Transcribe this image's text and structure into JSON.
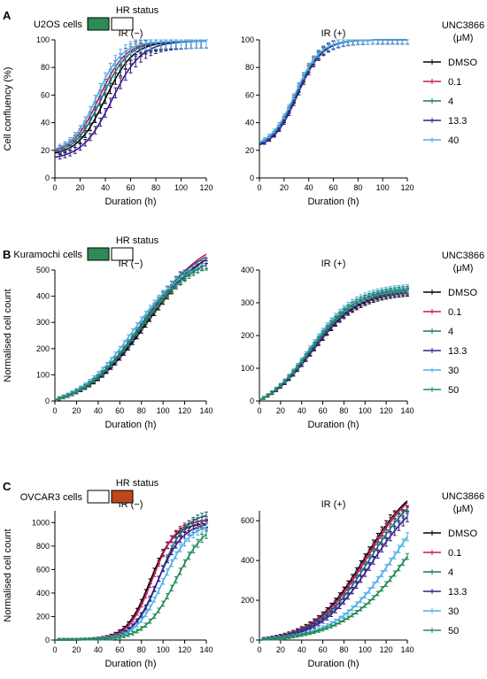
{
  "colors": {
    "DMSO": "#000000",
    "c0_1": "#c2185b",
    "c4": "#1b6f7a",
    "c13_3": "#3a1a8a",
    "c40": "#4fb0e8",
    "c30": "#4fb0e8",
    "c50": "#238b57",
    "hr_green": "#2e8b57",
    "hr_orange": "#c0461c"
  },
  "panels": [
    {
      "letter": "A",
      "cell_label": "U2OS cells",
      "hr_title": "HR status",
      "hr_boxes": [
        "hr_green",
        "none"
      ],
      "legend_title": [
        "UNC3866",
        "(μM)"
      ],
      "legend": [
        "DMSO",
        "0.1",
        "4",
        "13.3",
        "40"
      ]
    },
    {
      "letter": "B",
      "cell_label": "Kuramochi cells",
      "hr_title": "HR status",
      "hr_boxes": [
        "hr_green",
        "none"
      ],
      "legend_title": [
        "UNC3866",
        "(μM)"
      ],
      "legend": [
        "DMSO",
        "0.1",
        "4",
        "13.3",
        "30",
        "50"
      ]
    },
    {
      "letter": "C",
      "cell_label": "OVCAR3 cells",
      "hr_title": "HR status",
      "hr_boxes": [
        "none",
        "hr_orange"
      ],
      "legend_title": [
        "UNC3866",
        "(μM)"
      ],
      "legend": [
        "DMSO",
        "0.1",
        "4",
        "13.3",
        "30",
        "50"
      ]
    }
  ],
  "chart_data": [
    {
      "id": "A-left",
      "type": "line",
      "title": "IR (−)",
      "xlabel": "Duration (h)",
      "ylabel": "Cell confluency (%)",
      "xlim": [
        0,
        120
      ],
      "ylim": [
        0,
        100
      ],
      "xticks": [
        0,
        20,
        40,
        60,
        80,
        100,
        120
      ],
      "yticks": [
        0,
        20,
        40,
        60,
        80,
        100
      ],
      "series": [
        {
          "name": "DMSO",
          "color_key": "DMSO",
          "t0": 18,
          "K": 99,
          "mid": 40,
          "k": 0.09,
          "xmax": 120,
          "err": 5
        },
        {
          "name": "0.1",
          "color_key": "c0_1",
          "t0": 20,
          "K": 99,
          "mid": 35,
          "k": 0.095,
          "xmax": 120,
          "err": 5
        },
        {
          "name": "4",
          "color_key": "c4",
          "t0": 19,
          "K": 99,
          "mid": 37,
          "k": 0.093,
          "xmax": 120,
          "err": 5
        },
        {
          "name": "13.3",
          "color_key": "c13_3",
          "t0": 15,
          "K": 99,
          "mid": 45,
          "k": 0.085,
          "xmax": 120,
          "err": 5
        },
        {
          "name": "40",
          "color_key": "c40",
          "t0": 21,
          "K": 99,
          "mid": 33,
          "k": 0.1,
          "xmax": 120,
          "err": 5
        }
      ]
    },
    {
      "id": "A-right",
      "type": "line",
      "title": "IR (+)",
      "xlabel": "Duration (h)",
      "ylabel": "",
      "xlim": [
        0,
        120
      ],
      "ylim": [
        0,
        100
      ],
      "xticks": [
        0,
        20,
        40,
        60,
        80,
        100,
        120
      ],
      "yticks": [
        0,
        20,
        40,
        60,
        80,
        100
      ],
      "series": [
        {
          "name": "DMSO",
          "color_key": "DMSO",
          "t0": 24,
          "K": 100,
          "mid": 30,
          "k": 0.1,
          "xmax": 120,
          "err": 3
        },
        {
          "name": "0.1",
          "color_key": "c0_1",
          "t0": 24,
          "K": 100,
          "mid": 29,
          "k": 0.1,
          "xmax": 120,
          "err": 3
        },
        {
          "name": "4",
          "color_key": "c4",
          "t0": 25,
          "K": 100,
          "mid": 30,
          "k": 0.1,
          "xmax": 120,
          "err": 3
        },
        {
          "name": "13.3",
          "color_key": "c13_3",
          "t0": 24,
          "K": 100,
          "mid": 31,
          "k": 0.1,
          "xmax": 120,
          "err": 3
        },
        {
          "name": "40",
          "color_key": "c40",
          "t0": 26,
          "K": 100,
          "mid": 29,
          "k": 0.1,
          "xmax": 120,
          "err": 3
        }
      ]
    },
    {
      "id": "B-left",
      "type": "line",
      "title": "IR (−)",
      "xlabel": "Duration (h)",
      "ylabel": "Normalised cell count",
      "xlim": [
        0,
        140
      ],
      "ylim": [
        0,
        500
      ],
      "xticks": [
        0,
        20,
        40,
        60,
        80,
        100,
        120,
        140
      ],
      "yticks": [
        0,
        100,
        200,
        300,
        400,
        500
      ],
      "series": [
        {
          "name": "DMSO",
          "color_key": "DMSO",
          "t0": 5,
          "K": 540,
          "mid": 85,
          "k": 0.035,
          "xmax": 140,
          "err": 15
        },
        {
          "name": "0.1",
          "color_key": "c0_1",
          "t0": 5,
          "K": 560,
          "mid": 83,
          "k": 0.035,
          "xmax": 140,
          "err": 15
        },
        {
          "name": "4",
          "color_key": "c4",
          "t0": 5,
          "K": 550,
          "mid": 80,
          "k": 0.036,
          "xmax": 140,
          "err": 15
        },
        {
          "name": "13.3",
          "color_key": "c13_3",
          "t0": 5,
          "K": 540,
          "mid": 82,
          "k": 0.036,
          "xmax": 140,
          "err": 15
        },
        {
          "name": "30",
          "color_key": "c30",
          "t0": 5,
          "K": 520,
          "mid": 72,
          "k": 0.038,
          "xmax": 140,
          "err": 15
        },
        {
          "name": "50",
          "color_key": "c50",
          "t0": 5,
          "K": 520,
          "mid": 78,
          "k": 0.037,
          "xmax": 140,
          "err": 15
        }
      ]
    },
    {
      "id": "B-right",
      "type": "line",
      "title": "IR (+)",
      "xlabel": "Duration (h)",
      "ylabel": "",
      "xlim": [
        0,
        140
      ],
      "ylim": [
        0,
        400
      ],
      "xticks": [
        0,
        20,
        40,
        60,
        80,
        100,
        120,
        140
      ],
      "yticks": [
        0,
        100,
        200,
        300,
        400
      ],
      "series": [
        {
          "name": "DMSO",
          "color_key": "DMSO",
          "t0": 3,
          "K": 330,
          "mid": 50,
          "k": 0.045,
          "xmax": 140,
          "err": 10
        },
        {
          "name": "0.1",
          "color_key": "c0_1",
          "t0": 3,
          "K": 335,
          "mid": 50,
          "k": 0.045,
          "xmax": 140,
          "err": 10
        },
        {
          "name": "4",
          "color_key": "c4",
          "t0": 3,
          "K": 340,
          "mid": 49,
          "k": 0.046,
          "xmax": 140,
          "err": 10
        },
        {
          "name": "13.3",
          "color_key": "c13_3",
          "t0": 3,
          "K": 335,
          "mid": 50,
          "k": 0.045,
          "xmax": 140,
          "err": 10
        },
        {
          "name": "30",
          "color_key": "c30",
          "t0": 3,
          "K": 345,
          "mid": 47,
          "k": 0.047,
          "xmax": 140,
          "err": 10
        },
        {
          "name": "50",
          "color_key": "c50",
          "t0": 3,
          "K": 340,
          "mid": 48,
          "k": 0.046,
          "xmax": 140,
          "err": 10
        }
      ]
    },
    {
      "id": "C-left",
      "type": "line",
      "title": "IR (−)",
      "xlabel": "Duration (h)",
      "ylabel": "Normalised cell count",
      "xlim": [
        0,
        140
      ],
      "ylim": [
        0,
        1100
      ],
      "xticks": [
        0,
        20,
        40,
        60,
        80,
        100,
        120,
        140
      ],
      "yticks": [
        0,
        200,
        400,
        600,
        800,
        1000
      ],
      "series": [
        {
          "name": "DMSO",
          "color_key": "DMSO",
          "t0": 0,
          "K": 990,
          "mid": 88,
          "k": 0.09,
          "xmax": 140,
          "err": 30
        },
        {
          "name": "0.1",
          "color_key": "c0_1",
          "t0": 0,
          "K": 1020,
          "mid": 90,
          "k": 0.09,
          "xmax": 140,
          "err": 30
        },
        {
          "name": "4",
          "color_key": "c4",
          "t0": 0,
          "K": 1060,
          "mid": 97,
          "k": 0.085,
          "xmax": 140,
          "err": 30
        },
        {
          "name": "13.3",
          "color_key": "c13_3",
          "t0": 0,
          "K": 980,
          "mid": 95,
          "k": 0.085,
          "xmax": 140,
          "err": 30
        },
        {
          "name": "30",
          "color_key": "c30",
          "t0": 0,
          "K": 960,
          "mid": 100,
          "k": 0.08,
          "xmax": 140,
          "err": 35
        },
        {
          "name": "50",
          "color_key": "c50",
          "t0": 0,
          "K": 900,
          "mid": 112,
          "k": 0.07,
          "xmax": 140,
          "err": 35
        }
      ]
    },
    {
      "id": "C-right",
      "type": "line",
      "title": "IR (+)",
      "xlabel": "Duration (h)",
      "ylabel": "",
      "xlim": [
        0,
        140
      ],
      "ylim": [
        0,
        650
      ],
      "xticks": [
        0,
        20,
        40,
        60,
        80,
        100,
        120,
        140
      ],
      "yticks": [
        0,
        200,
        400,
        600
      ],
      "series": [
        {
          "name": "DMSO",
          "color_key": "DMSO",
          "t0": 0,
          "K": 700,
          "mid": 100,
          "k": 0.04,
          "xmax": 140,
          "err": 25
        },
        {
          "name": "0.1",
          "color_key": "c0_1",
          "t0": 0,
          "K": 690,
          "mid": 102,
          "k": 0.04,
          "xmax": 140,
          "err": 25
        },
        {
          "name": "4",
          "color_key": "c4",
          "t0": 0,
          "K": 660,
          "mid": 104,
          "k": 0.04,
          "xmax": 140,
          "err": 25
        },
        {
          "name": "13.3",
          "color_key": "c13_3",
          "t0": 0,
          "K": 620,
          "mid": 106,
          "k": 0.04,
          "xmax": 140,
          "err": 25
        },
        {
          "name": "30",
          "color_key": "c30",
          "t0": 0,
          "K": 520,
          "mid": 130,
          "k": 0.035,
          "xmax": 140,
          "err": 20
        },
        {
          "name": "50",
          "color_key": "c50",
          "t0": 0,
          "K": 420,
          "mid": 150,
          "k": 0.03,
          "xmax": 140,
          "err": 15
        }
      ]
    }
  ]
}
